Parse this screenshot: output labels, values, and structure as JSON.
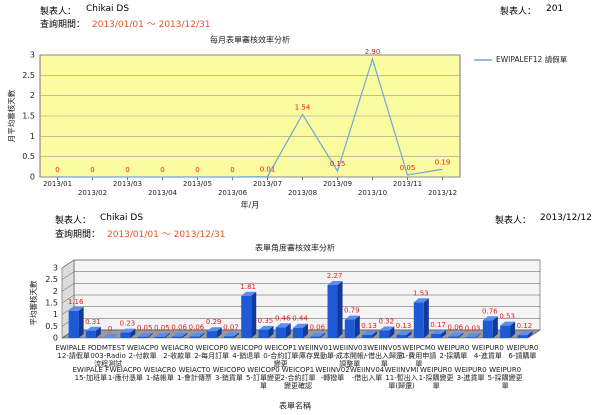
{
  "header1": {
    "maker_label": "製表人：",
    "maker": "Chikai DS",
    "period_label": "查詢期間：",
    "period": "2013/01/01 ～ 2013/12/31",
    "right_label": "製表人：",
    "right_value": "201"
  },
  "header2": {
    "maker_label": "製表人：",
    "maker": "Chikai DS",
    "period_label": "查詢期間：",
    "period": "2013/01/01 ～ 2013/12/31",
    "right_label": "製表人：",
    "right_value": "2013/12/12"
  },
  "chart_data": [
    {
      "type": "line",
      "title": "每月表單審核效率分析",
      "y_label": "月平均審核天數",
      "x_label": "年/月",
      "categories": [
        "2013/01",
        "2013/02",
        "2013/03",
        "2013/04",
        "2013/05",
        "2013/06",
        "2013/07",
        "2013/08",
        "2013/09",
        "2013/10",
        "2013/11",
        "2013/12"
      ],
      "series": [
        {
          "name": "EWIPALEF12 請假單",
          "color": "#6fa8dc",
          "values": [
            0,
            0,
            0,
            0,
            0,
            0,
            0.01,
            1.54,
            0.15,
            2.9,
            0.05,
            0.19
          ],
          "value_labels": [
            "0",
            "0",
            "0",
            "0",
            "0",
            "0",
            "0.01",
            "1.54",
            "0.15",
            "2.90",
            "0.05",
            "0.19"
          ]
        }
      ],
      "ylim": [
        0,
        3
      ],
      "yticks": [
        0,
        0.5,
        1,
        1.5,
        2,
        2.5,
        3
      ],
      "grid": true,
      "legend": "right"
    },
    {
      "type": "bar",
      "title": "表單角度審核效率分析",
      "y_label": "平均審核天數",
      "x_label": "表單名稱",
      "categories": [
        "EWIPALE F12-請假單",
        "EWIPALE F15-加班單",
        "ODMTEST 003-Radio流程測試",
        "WEIACP0 1-應付憑單",
        "WEIACP0 2-付款單",
        "WEIACR0 1-結帳單",
        "WEIACR0 2-收款單",
        "WEIACT0 1-會計傳票",
        "WEICOP0 2-每月訂單",
        "WEICOP0 3-銷貨單",
        "WEICOP0 4-銷退單",
        "WEICOP0 5-訂單變更單",
        "WEICOP1 0-合約訂單變更",
        "WEICOP1 2-合約訂單變更確認",
        "WEIINV01 -庫存異動單",
        "WEIINV02 -轉撥單",
        "WEIINV03 -成本開帳/調整單",
        "WEIINV04 -借出入單",
        "WEIINV05 -借出入歸還單",
        "WEIINVMI 11-暫出入單(歸還)",
        "WEIPCM0 1-費用申請單",
        "WEIPUR0 1-採購變更單",
        "WEIPUR0 2-採購單",
        "WEIPUR0 3-進貨單",
        "WEIPUR0 4-進貨單",
        "WEIPUR0 5-採購變更單",
        "WEIPUR0 6-請購單"
      ],
      "values": [
        1.16,
        0.31,
        0,
        0.23,
        0.05,
        0.05,
        0.06,
        0.06,
        0.29,
        0.07,
        1.81,
        0.35,
        0.46,
        0.44,
        0.06,
        2.27,
        0.79,
        0.13,
        0.32,
        0.13,
        1.53,
        0.17,
        0.06,
        0.03,
        0.76,
        0.53,
        0.12
      ],
      "color": "#1f5ad6",
      "ylim": [
        0,
        3
      ],
      "yticks": [
        0,
        0.5,
        1,
        1.5,
        2,
        2.5,
        3
      ],
      "grid": true
    }
  ]
}
